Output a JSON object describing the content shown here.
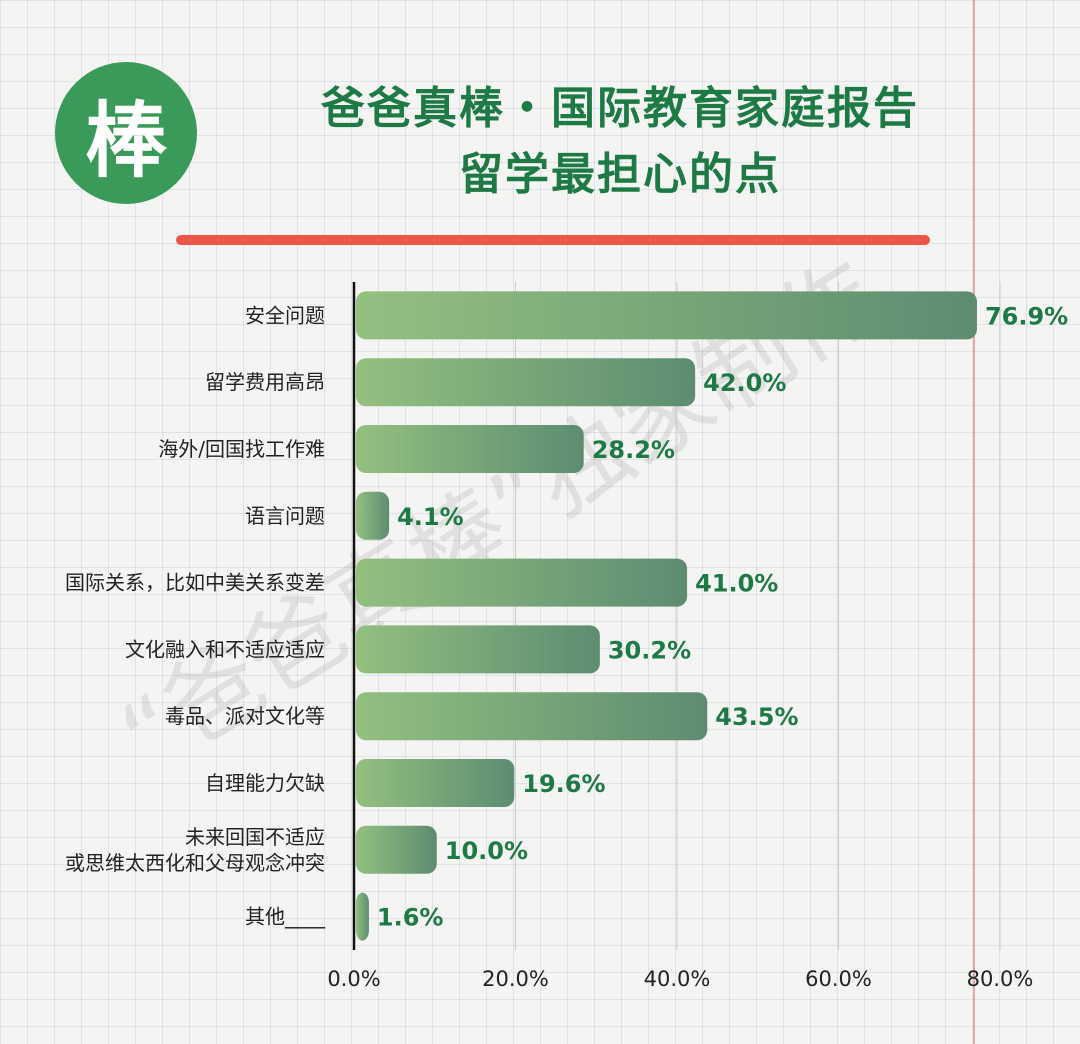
{
  "header": {
    "logo_char": "棒",
    "title_line1": "爸爸真棒・国际教育家庭报告",
    "title_line2": "留学最担心的点"
  },
  "watermark": "“爸爸真棒”独家制作",
  "colors": {
    "title": "#1e7a44",
    "logo_bg": "#3a9a5a",
    "rule": "#ea5647",
    "bar_start": "#93c07f",
    "bar_end": "#5d8c72",
    "value_label": "#1e7a44"
  },
  "chart_data": {
    "type": "bar",
    "orientation": "horizontal",
    "title": "留学最担心的点",
    "categories": [
      "安全问题",
      "留学费用高昂",
      "海外/回国找工作难",
      "语言问题",
      "国际关系，比如中美关系变差",
      "文化融入和不适应适应",
      "毒品、派对文化等",
      "自理能力欠缺",
      "未来回国不适应\n或思维太西化和父母观念冲突",
      "其他____"
    ],
    "values": [
      76.9,
      42.0,
      28.2,
      4.1,
      41.0,
      30.2,
      43.5,
      19.6,
      10.0,
      1.6
    ],
    "value_labels": [
      "76.9%",
      "42.0%",
      "28.2%",
      "4.1%",
      "41.0%",
      "30.2%",
      "43.5%",
      "19.6%",
      "10.0%",
      "1.6%"
    ],
    "x_ticks": [
      "0.0%",
      "20.0%",
      "40.0%",
      "60.0%",
      "80.0%"
    ],
    "xlim": [
      0,
      80
    ],
    "grid": true,
    "legend": "none"
  }
}
